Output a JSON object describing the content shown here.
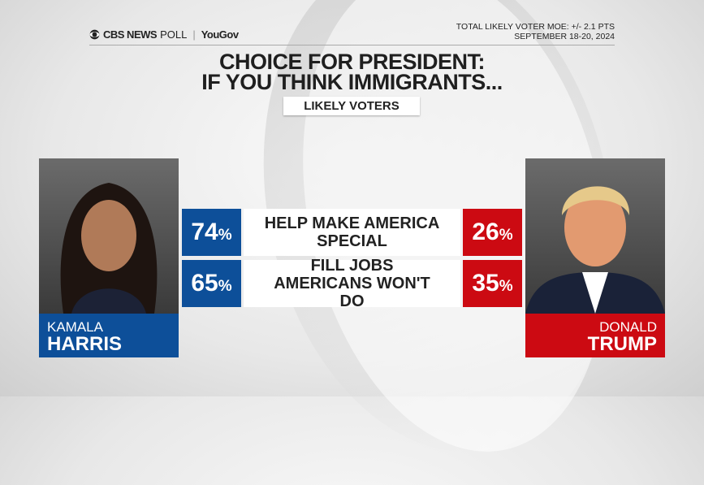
{
  "header": {
    "logo_cbs": "CBS NEWS",
    "logo_poll": "POLL",
    "logo_partner": "YouGov",
    "moe": "TOTAL LIKELY VOTER MOE: +/- 2.1 PTS",
    "dates": "SEPTEMBER 18-20, 2024"
  },
  "title_line1": "CHOICE FOR PRESIDENT:",
  "title_line2": "IF YOU THINK IMMIGRANTS...",
  "subtitle": "LIKELY VOTERS",
  "colors": {
    "harris": "#0d4f99",
    "trump": "#cc0a12"
  },
  "candidates": {
    "left": {
      "first": "KAMALA",
      "last": "HARRIS"
    },
    "right": {
      "first": "DONALD",
      "last": "TRUMP"
    }
  },
  "chart_data": {
    "type": "table",
    "categories": [
      "HELP MAKE AMERICA SPECIAL",
      "FILL JOBS AMERICANS WON'T DO"
    ],
    "series": [
      {
        "name": "KAMALA HARRIS",
        "values": [
          74,
          65
        ]
      },
      {
        "name": "DONALD TRUMP",
        "values": [
          26,
          35
        ]
      }
    ],
    "unit": "%"
  },
  "rows": [
    {
      "label": "HELP MAKE AMERICA SPECIAL",
      "harris": "74",
      "trump": "26"
    },
    {
      "label": "FILL JOBS AMERICANS WON'T DO",
      "harris": "65",
      "trump": "35"
    }
  ],
  "pct": "%"
}
